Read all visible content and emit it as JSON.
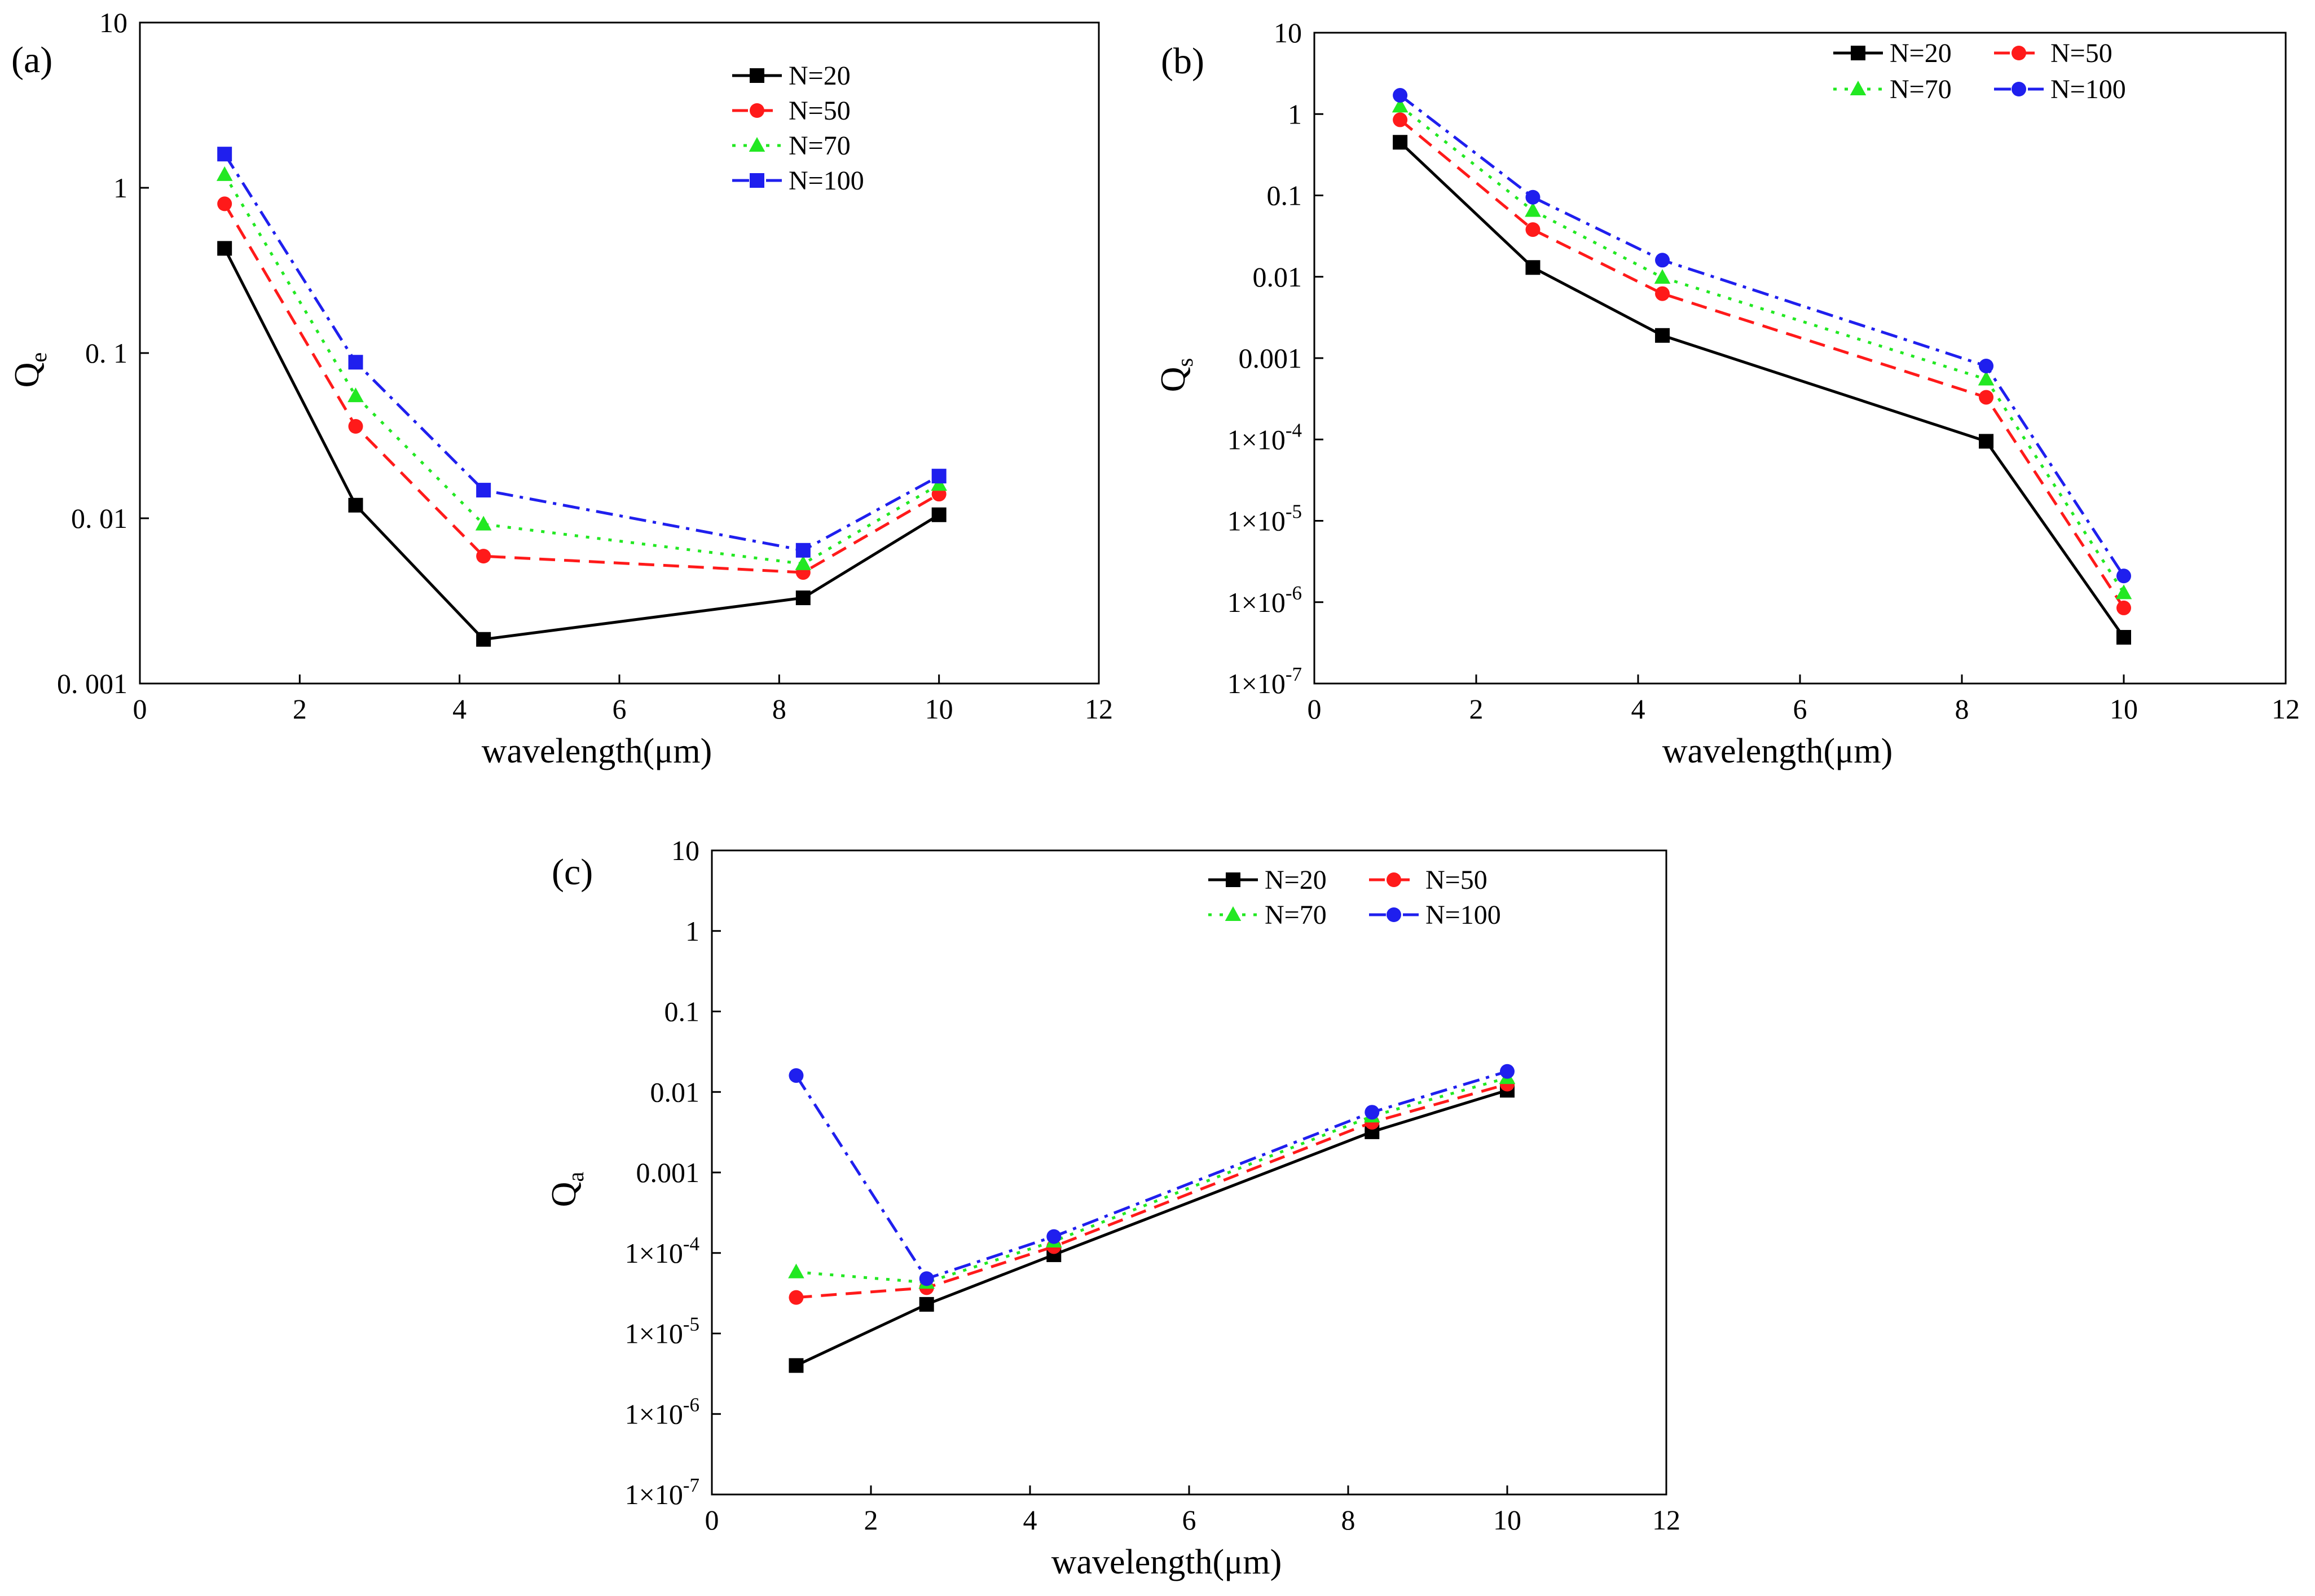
{
  "colors": {
    "N20": "#000000",
    "N50": "#ff1a1a",
    "N70": "#22e822",
    "N100": "#1f1fee",
    "axis": "#000000",
    "background": "#ffffff"
  },
  "chart_data": [
    {
      "id": "a",
      "panel_label": "(a)",
      "type": "line",
      "y_scale": "log",
      "xlabel": "wavelength(μm)",
      "ylabel": "Q",
      "ylabel_sub": "e",
      "xlim": [
        0,
        12
      ],
      "ylim": [
        0.001,
        10
      ],
      "xticks": [
        0,
        2,
        4,
        6,
        8,
        10,
        12
      ],
      "xtick_labels": [
        "0",
        "2",
        "4",
        "6",
        "8",
        "10",
        "12"
      ],
      "yticks": [
        0.001,
        0.01,
        0.1,
        1,
        10
      ],
      "ytick_labels": [
        {
          "base": "0. 001",
          "sup": ""
        },
        {
          "base": "0. 01",
          "sup": ""
        },
        {
          "base": "0. 1",
          "sup": ""
        },
        {
          "base": "1",
          "sup": ""
        },
        {
          "base": "10",
          "sup": ""
        }
      ],
      "legend": {
        "placement": "top-right",
        "columns": 1
      },
      "x": [
        1.06,
        2.7,
        4.3,
        8.3,
        10.0
      ],
      "series": [
        {
          "name": "N=20",
          "key": "N20",
          "values": [
            0.43,
            0.012,
            0.00185,
            0.0033,
            0.0105
          ],
          "dash": "solid",
          "marker": "square"
        },
        {
          "name": "N=50",
          "key": "N50",
          "values": [
            0.8,
            0.036,
            0.0059,
            0.0047,
            0.014
          ],
          "dash": "dashed",
          "marker": "circle"
        },
        {
          "name": "N=70",
          "key": "N70",
          "values": [
            1.2,
            0.055,
            0.0092,
            0.0053,
            0.016
          ],
          "dash": "dotted",
          "marker": "triangle"
        },
        {
          "name": "N=100",
          "key": "N100",
          "values": [
            1.6,
            0.088,
            0.0148,
            0.0064,
            0.018
          ],
          "dash": "dashdot",
          "marker": "square"
        }
      ]
    },
    {
      "id": "b",
      "panel_label": "(b)",
      "type": "line",
      "y_scale": "log",
      "xlabel": "wavelength(μm)",
      "ylabel": "Q",
      "ylabel_sub": "s",
      "xlim": [
        0,
        12
      ],
      "ylim": [
        1e-07,
        10
      ],
      "xticks": [
        0,
        2,
        4,
        6,
        8,
        10,
        12
      ],
      "xtick_labels": [
        "0",
        "2",
        "4",
        "6",
        "8",
        "10",
        "12"
      ],
      "yticks": [
        1e-07,
        1e-06,
        1e-05,
        0.0001,
        0.001,
        0.01,
        0.1,
        1,
        10
      ],
      "ytick_labels": [
        {
          "base": "1×10",
          "sup": "-7"
        },
        {
          "base": "1×10",
          "sup": "-6"
        },
        {
          "base": "1×10",
          "sup": "-5"
        },
        {
          "base": "1×10",
          "sup": "-4"
        },
        {
          "base": "0.001",
          "sup": ""
        },
        {
          "base": "0.01",
          "sup": ""
        },
        {
          "base": "0.1",
          "sup": ""
        },
        {
          "base": "1",
          "sup": ""
        },
        {
          "base": "10",
          "sup": ""
        }
      ],
      "legend": {
        "placement": "top-right",
        "columns": 2
      },
      "x": [
        1.06,
        2.7,
        4.3,
        8.3,
        10.0
      ],
      "series": [
        {
          "name": "N=20",
          "key": "N20",
          "values": [
            0.45,
            0.013,
            0.0019,
            9.5e-05,
            3.7e-07
          ],
          "dash": "solid",
          "marker": "square"
        },
        {
          "name": "N=50",
          "key": "N50",
          "values": [
            0.85,
            0.038,
            0.0062,
            0.00033,
            8.5e-07
          ],
          "dash": "dashed",
          "marker": "circle"
        },
        {
          "name": "N=70",
          "key": "N70",
          "values": [
            1.25,
            0.065,
            0.0098,
            0.00055,
            1.3e-06
          ],
          "dash": "dotted",
          "marker": "triangle"
        },
        {
          "name": "N=100",
          "key": "N100",
          "values": [
            1.7,
            0.095,
            0.016,
            0.0008,
            2.1e-06
          ],
          "dash": "dashdot",
          "marker": "circle"
        }
      ]
    },
    {
      "id": "c",
      "panel_label": "(c)",
      "type": "line",
      "y_scale": "log",
      "xlabel": "wavelength(μm)",
      "ylabel": "Q",
      "ylabel_sub": "a",
      "xlim": [
        0,
        12
      ],
      "ylim": [
        1e-07,
        10
      ],
      "xticks": [
        0,
        2,
        4,
        6,
        8,
        10,
        12
      ],
      "xtick_labels": [
        "0",
        "2",
        "4",
        "6",
        "8",
        "10",
        "12"
      ],
      "yticks": [
        1e-07,
        1e-06,
        1e-05,
        0.0001,
        0.001,
        0.01,
        0.1,
        1,
        10
      ],
      "ytick_labels": [
        {
          "base": "1×10",
          "sup": "-7"
        },
        {
          "base": "1×10",
          "sup": "-6"
        },
        {
          "base": "1×10",
          "sup": "-5"
        },
        {
          "base": "1×10",
          "sup": "-4"
        },
        {
          "base": "0.001",
          "sup": ""
        },
        {
          "base": "0.01",
          "sup": ""
        },
        {
          "base": "0.1",
          "sup": ""
        },
        {
          "base": "1",
          "sup": ""
        },
        {
          "base": "10",
          "sup": ""
        }
      ],
      "legend": {
        "placement": "top-right",
        "columns": 2
      },
      "x": [
        1.06,
        2.7,
        4.3,
        8.3,
        10.0
      ],
      "series": [
        {
          "name": "N=20",
          "key": "N20",
          "values": [
            4e-06,
            2.3e-05,
            9.5e-05,
            0.0032,
            0.0105
          ],
          "dash": "solid",
          "marker": "square"
        },
        {
          "name": "N=50",
          "key": "N50",
          "values": [
            2.8e-05,
            3.7e-05,
            0.00012,
            0.0042,
            0.0125
          ],
          "dash": "dashed",
          "marker": "circle"
        },
        {
          "name": "N=70",
          "key": "N70",
          "values": [
            5.8e-05,
            4.3e-05,
            0.00014,
            0.005,
            0.015
          ],
          "dash": "dotted",
          "marker": "triangle"
        },
        {
          "name": "N=100",
          "key": "N100",
          "values": [
            0.016,
            4.8e-05,
            0.00016,
            0.0056,
            0.018
          ],
          "dash": "dashdot",
          "marker": "circle"
        }
      ]
    }
  ]
}
